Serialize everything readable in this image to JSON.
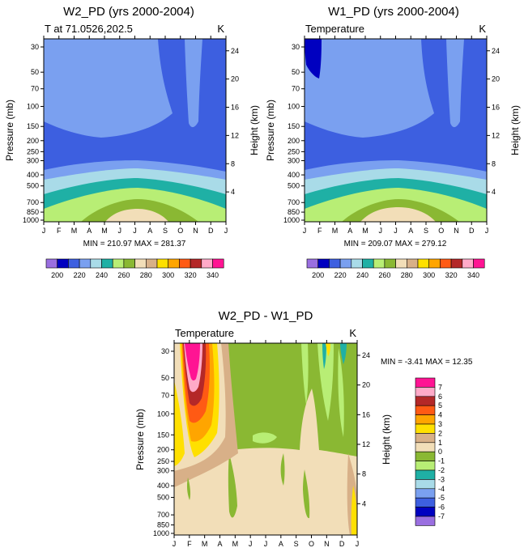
{
  "colors": {
    "palette": [
      "#9a6fe0",
      "#0000c0",
      "#3d5fe0",
      "#7aa0f0",
      "#a9dbe8",
      "#1fb0a5",
      "#b8ee75",
      "#8ab833",
      "#f2deb8",
      "#d8b088",
      "#ffe000",
      "#ffa500",
      "#ff5a14",
      "#b42828",
      "#ffaac8",
      "#ff1493"
    ]
  },
  "chart_data": [
    {
      "type": "contour",
      "title": "W2_PD (yrs 2000-2004)",
      "left_label": "T at 71.0526,202.5",
      "unit_label": "K",
      "ylabel": "Pressure (mb)",
      "ylabel_right": "Height (km)",
      "x_ticks": [
        "J",
        "F",
        "M",
        "A",
        "M",
        "J",
        "J",
        "A",
        "S",
        "O",
        "N",
        "D",
        "J"
      ],
      "pressure_ticks": [
        "30",
        "50",
        "70",
        "100",
        "150",
        "200",
        "250",
        "300",
        "400",
        "500",
        "700",
        "850",
        "1000"
      ],
      "height_ticks": [
        "24",
        "20",
        "16",
        "12",
        "8",
        "4"
      ],
      "stats": "MIN = 210.97 MAX = 281.37",
      "colorbar_labels": [
        "200",
        "220",
        "240",
        "260",
        "280",
        "300",
        "320",
        "340"
      ]
    },
    {
      "type": "contour",
      "title": "W1_PD (yrs 2000-2004)",
      "left_label": "Temperature",
      "unit_label": "K",
      "ylabel": "Pressure (mb)",
      "ylabel_right": "Height (km)",
      "x_ticks": [
        "J",
        "F",
        "M",
        "A",
        "M",
        "J",
        "J",
        "A",
        "S",
        "O",
        "N",
        "D",
        "J"
      ],
      "pressure_ticks": [
        "30",
        "50",
        "70",
        "100",
        "150",
        "200",
        "250",
        "300",
        "400",
        "500",
        "700",
        "850",
        "1000"
      ],
      "height_ticks": [
        "24",
        "20",
        "16",
        "12",
        "8",
        "4"
      ],
      "stats": "MIN = 209.07 MAX = 279.12",
      "colorbar_labels": [
        "200",
        "220",
        "240",
        "260",
        "280",
        "300",
        "320",
        "340"
      ]
    },
    {
      "type": "contour",
      "title": "W2_PD - W1_PD",
      "left_label": "Temperature",
      "unit_label": "K",
      "ylabel": "Pressure (mb)",
      "ylabel_right": "Height (km)",
      "x_ticks": [
        "J",
        "F",
        "M",
        "A",
        "M",
        "J",
        "J",
        "A",
        "S",
        "O",
        "N",
        "D",
        "J"
      ],
      "pressure_ticks": [
        "30",
        "50",
        "70",
        "100",
        "150",
        "200",
        "250",
        "300",
        "400",
        "500",
        "700",
        "850",
        "1000"
      ],
      "height_ticks": [
        "24",
        "20",
        "16",
        "12",
        "8",
        "4"
      ],
      "stats": "MIN =  -3.41 MAX =  12.35",
      "colorbar_labels": [
        "7",
        "6",
        "5",
        "4",
        "3",
        "2",
        "1",
        "0",
        "-1",
        "-2",
        "-3",
        "-4",
        "-5",
        "-6",
        "-7"
      ]
    }
  ]
}
